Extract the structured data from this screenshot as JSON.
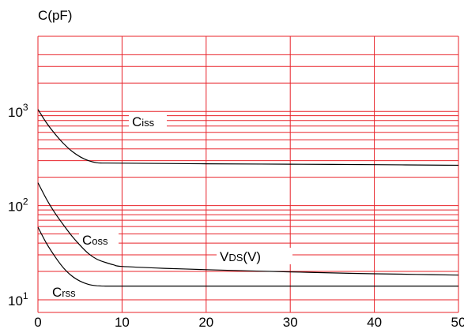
{
  "chart_data": {
    "type": "line",
    "title": "",
    "xlabel": "",
    "ylabel": "C(pF)",
    "x_ticks": [
      "0",
      "10",
      "20",
      "30",
      "40",
      "50"
    ],
    "y_ticks": [
      {
        "base": "10",
        "exp": "1",
        "value": 10
      },
      {
        "base": "10",
        "exp": "2",
        "value": 100
      },
      {
        "base": "10",
        "exp": "3",
        "value": 1000
      }
    ],
    "xlim": [
      0,
      50
    ],
    "ylim": [
      10,
      4000
    ],
    "y_scale": "log",
    "grid": true,
    "grid_color": "#e8232a",
    "line_color": "#000000",
    "annotations": [
      {
        "main": "C",
        "sub": "iss"
      },
      {
        "main": "C",
        "sub": "oss"
      },
      {
        "main": "C",
        "sub": "rss"
      },
      {
        "main": "V",
        "sub": "DS",
        "suffix": "(V)"
      }
    ],
    "series": [
      {
        "x": [
          0,
          1,
          2,
          3,
          4,
          5,
          6,
          7,
          8,
          10,
          15,
          20,
          30,
          40,
          50
        ],
        "values": [
          1050,
          760,
          580,
          460,
          380,
          330,
          300,
          285,
          283,
          282,
          280,
          278,
          275,
          272,
          268
        ]
      },
      {
        "x": [
          0,
          1,
          2,
          3,
          4,
          5,
          6,
          7,
          8,
          9,
          10,
          15,
          20,
          25,
          30,
          35,
          40,
          45,
          50
        ],
        "values": [
          175,
          118,
          84,
          63,
          48,
          38,
          31,
          27,
          25,
          23.5,
          22.6,
          21.6,
          20.9,
          20.3,
          19.8,
          19.3,
          18.9,
          18.6,
          18.3
        ]
      },
      {
        "x": [
          0,
          1,
          2,
          3,
          4,
          5,
          6,
          7,
          8,
          10,
          20,
          30,
          40,
          50
        ],
        "values": [
          59,
          40,
          29,
          22,
          18,
          15.8,
          14.6,
          14.1,
          14,
          14,
          14,
          14,
          14,
          14
        ]
      }
    ]
  }
}
